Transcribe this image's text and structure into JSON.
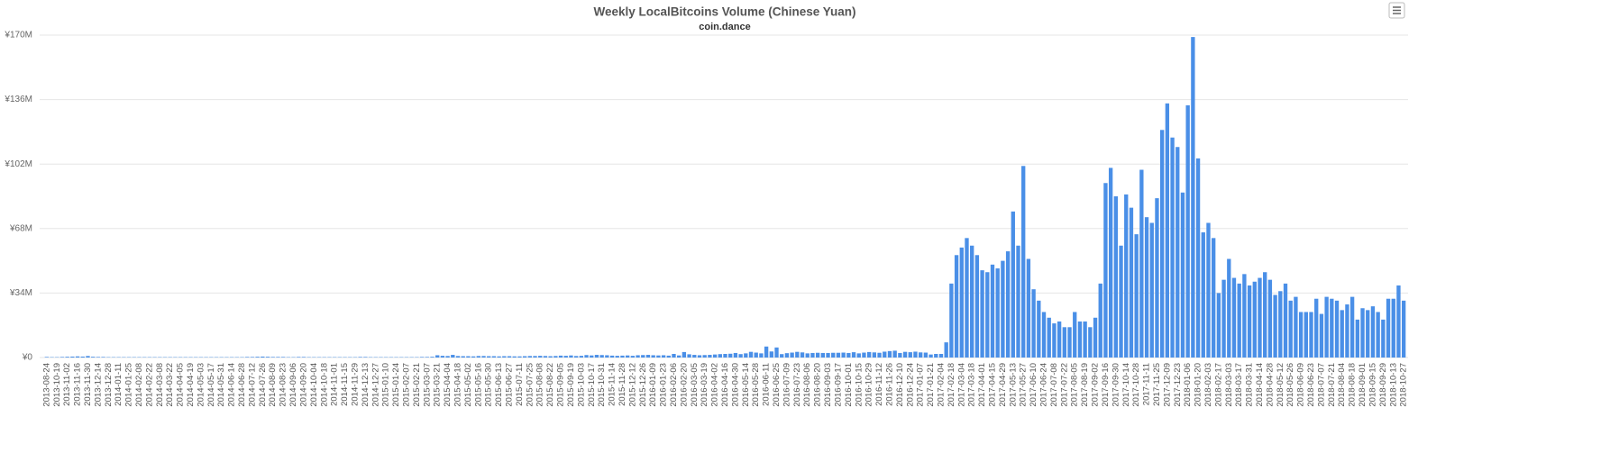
{
  "chart_data": {
    "type": "bar",
    "title": "Weekly LocalBitcoins Volume (Chinese Yuan)",
    "subtitle": "coin.dance",
    "color": "#4a8fe7",
    "grid": true,
    "ylim": [
      0,
      170
    ],
    "yticks": [
      {
        "value": 0,
        "label": "¥0"
      },
      {
        "value": 34,
        "label": "¥34M"
      },
      {
        "value": 68,
        "label": "¥68M"
      },
      {
        "value": 102,
        "label": "¥102M"
      },
      {
        "value": 136,
        "label": "¥136M"
      },
      {
        "value": 170,
        "label": "¥170M"
      }
    ],
    "categories": [
      "2013-08-24",
      null,
      "2013-10-19",
      null,
      "2013-11-02",
      null,
      "2013-11-16",
      null,
      "2013-11-30",
      null,
      "2013-12-14",
      null,
      "2013-12-28",
      null,
      "2014-01-11",
      null,
      "2014-01-25",
      null,
      "2014-02-08",
      null,
      "2014-02-22",
      null,
      "2014-03-08",
      null,
      "2014-03-22",
      null,
      "2014-04-05",
      null,
      "2014-04-19",
      null,
      "2014-05-03",
      null,
      "2014-05-17",
      null,
      "2014-05-31",
      null,
      "2014-06-14",
      null,
      "2014-06-28",
      null,
      "2014-07-12",
      null,
      "2014-07-26",
      null,
      "2014-08-09",
      null,
      "2014-08-23",
      null,
      "2014-09-06",
      null,
      "2014-09-20",
      null,
      "2014-10-04",
      null,
      "2014-10-18",
      null,
      "2014-11-01",
      null,
      "2014-11-15",
      null,
      "2014-11-29",
      null,
      "2014-12-13",
      null,
      "2014-12-27",
      null,
      "2015-01-10",
      null,
      "2015-01-24",
      null,
      "2015-02-07",
      null,
      "2015-02-21",
      null,
      "2015-03-07",
      null,
      "2015-03-21",
      null,
      "2015-04-04",
      null,
      "2015-04-18",
      null,
      "2015-05-02",
      null,
      "2015-05-16",
      null,
      "2015-05-30",
      null,
      "2015-06-13",
      null,
      "2015-06-27",
      null,
      "2015-07-11",
      null,
      "2015-07-25",
      null,
      "2015-08-08",
      null,
      "2015-08-22",
      null,
      "2015-09-05",
      null,
      "2015-09-19",
      null,
      "2015-10-03",
      null,
      "2015-10-17",
      null,
      "2015-10-31",
      null,
      "2015-11-14",
      null,
      "2015-11-28",
      null,
      "2015-12-12",
      null,
      "2015-12-26",
      null,
      "2016-01-09",
      null,
      "2016-01-23",
      null,
      "2016-02-06",
      null,
      "2016-02-20",
      null,
      "2016-03-05",
      null,
      "2016-03-19",
      null,
      "2016-04-02",
      null,
      "2016-04-16",
      null,
      "2016-04-30",
      null,
      "2016-05-14",
      null,
      "2016-05-28",
      null,
      "2016-06-11",
      null,
      "2016-06-25",
      null,
      "2016-07-09",
      null,
      "2016-07-23",
      null,
      "2016-08-06",
      null,
      "2016-08-20",
      null,
      "2016-09-03",
      null,
      "2016-09-17",
      null,
      "2016-10-01",
      null,
      "2016-10-15",
      null,
      "2016-10-29",
      null,
      "2016-11-12",
      null,
      "2016-11-26",
      null,
      "2016-12-10",
      null,
      "2016-12-24",
      null,
      "2017-01-07",
      null,
      "2017-01-21",
      null,
      "2017-02-04",
      null,
      "2017-02-18",
      null,
      "2017-03-04",
      null,
      "2017-03-18",
      null,
      "2017-04-01",
      null,
      "2017-04-15",
      null,
      "2017-04-29",
      null,
      "2017-05-13",
      null,
      "2017-05-27",
      null,
      "2017-06-10",
      null,
      "2017-06-24",
      null,
      "2017-07-08",
      null,
      "2017-07-22",
      null,
      "2017-08-05",
      null,
      "2017-08-19",
      null,
      "2017-09-02",
      null,
      "2017-09-16",
      null,
      "2017-09-30",
      null,
      "2017-10-14",
      null,
      "2017-10-28",
      null,
      "2017-11-11",
      null,
      "2017-11-25",
      null,
      "2017-12-09",
      null,
      "2017-12-23",
      null,
      "2018-01-06",
      null,
      "2018-01-20",
      null,
      "2018-02-03",
      null,
      "2018-02-17",
      null,
      "2018-03-03",
      null,
      "2018-03-17",
      null,
      "2018-03-31",
      null,
      "2018-04-14",
      null,
      "2018-04-28",
      null,
      "2018-05-12",
      null,
      "2018-05-26",
      null,
      "2018-06-09",
      null,
      "2018-06-23",
      null,
      "2018-07-07",
      null,
      "2018-07-21",
      null,
      "2018-08-04",
      null,
      "2018-08-18",
      null,
      "2018-09-01",
      null,
      "2018-09-15",
      null,
      "2018-09-29",
      null,
      "2018-10-13",
      null,
      "2018-10-27"
    ],
    "values": [
      0.3,
      0.2,
      0.2,
      0.3,
      0.4,
      0.5,
      0.6,
      0.5,
      0.8,
      0.4,
      0.3,
      0.3,
      0.2,
      0.2,
      0.2,
      0.2,
      0.2,
      0.2,
      0.2,
      0.2,
      0.2,
      0.2,
      0.2,
      0.2,
      0.2,
      0.2,
      0.2,
      0.2,
      0.2,
      0.2,
      0.2,
      0.2,
      0.2,
      0.2,
      0.2,
      0.2,
      0.2,
      0.2,
      0.2,
      0.3,
      0.3,
      0.4,
      0.5,
      0.4,
      0.3,
      0.3,
      0.3,
      0.2,
      0.2,
      0.3,
      0.3,
      0.2,
      0.2,
      0.2,
      0.2,
      0.2,
      0.2,
      0.2,
      0.2,
      0.2,
      0.2,
      0.3,
      0.3,
      0.2,
      0.2,
      0.2,
      0.2,
      0.2,
      0.2,
      0.2,
      0.2,
      0.2,
      0.2,
      0.3,
      0.3,
      0.4,
      1.2,
      0.9,
      0.8,
      1.4,
      0.8,
      0.7,
      0.7,
      0.6,
      0.8,
      0.8,
      0.7,
      0.7,
      0.6,
      0.7,
      0.7,
      0.6,
      0.6,
      0.7,
      0.8,
      0.8,
      0.9,
      0.8,
      0.7,
      0.8,
      1.0,
      0.9,
      1.1,
      0.8,
      0.9,
      1.3,
      1.1,
      1.4,
      1.3,
      1.2,
      1.0,
      0.9,
      1.0,
      1.1,
      0.9,
      1.2,
      1.3,
      1.4,
      1.2,
      1.1,
      1.2,
      1.0,
      1.9,
      1.1,
      2.9,
      1.7,
      1.4,
      1.2,
      1.3,
      1.4,
      1.6,
      1.8,
      1.9,
      2.0,
      2.4,
      1.8,
      2.2,
      3.0,
      2.6,
      2.2,
      5.8,
      3.2,
      5.3,
      1.8,
      2.3,
      2.6,
      3.0,
      2.7,
      2.2,
      2.4,
      2.5,
      2.4,
      2.4,
      2.5,
      2.5,
      2.6,
      2.4,
      2.8,
      2.2,
      2.6,
      2.9,
      2.7,
      2.5,
      3.1,
      3.4,
      3.6,
      2.4,
      3.0,
      2.8,
      3.1,
      2.7,
      2.6,
      1.6,
      1.9,
      1.9,
      8,
      39,
      54,
      58,
      63,
      59,
      54,
      46,
      45,
      49,
      47,
      51,
      56,
      77,
      59,
      101,
      52,
      36,
      30,
      24,
      21,
      18,
      19,
      16,
      16,
      24,
      19,
      19,
      16,
      21,
      39,
      92,
      100,
      85,
      59,
      86,
      79,
      65,
      99,
      74,
      71,
      84,
      120,
      134,
      116,
      111,
      87,
      133,
      169,
      105,
      66,
      71,
      63,
      34,
      41,
      52,
      42,
      39,
      44,
      38,
      40,
      42,
      45,
      41,
      33,
      35,
      39,
      30,
      32,
      24,
      24,
      24,
      31,
      23,
      32,
      31,
      30,
      25,
      28,
      32,
      20,
      26,
      25,
      27,
      24,
      20,
      31,
      31,
      38,
      30
    ]
  }
}
